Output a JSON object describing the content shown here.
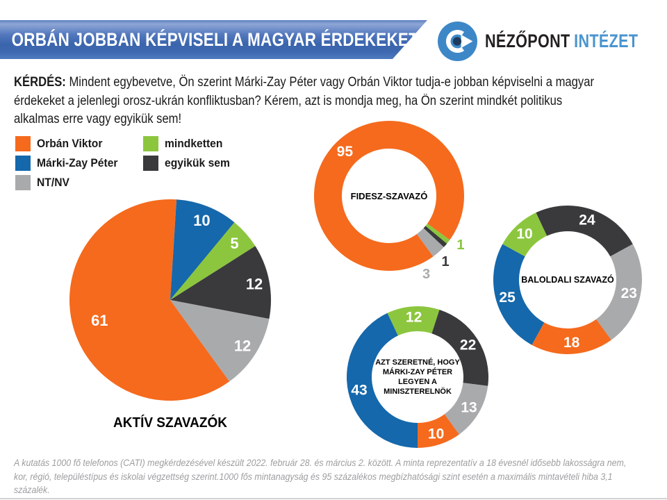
{
  "header": {
    "title": "ORBÁN JOBBAN KÉPVISELI A MAGYAR ÉRDEKEKET"
  },
  "logo": {
    "part1": "NÉZŐPONT",
    "part2": "INTÉZET",
    "icon": "eye-logo",
    "icon_color": "#3d87c7"
  },
  "question": {
    "label": "KÉRDÉS:",
    "line1_rest": " Mindent egybevetve, Ön szerint Márki-Zay Péter vagy Orbán Viktor tudja-e jobban képviselni a magyar",
    "line2": "érdekeket a jelenlegi orosz-ukrán konfliktusban? Kérem, azt is mondja meg, ha Ön szerint mindkét politikus",
    "line3": "alkalmas erre vagy egyikük sem!"
  },
  "legend": {
    "items": [
      {
        "label": "Orbán Viktor",
        "color": "#f56a1d"
      },
      {
        "label": "Márki-Zay Péter",
        "color": "#1568ab"
      },
      {
        "label": "NT/NV",
        "color": "#a9aaac"
      },
      {
        "label": "mindketten",
        "color": "#8cc63e"
      },
      {
        "label": "egyikük sem",
        "color": "#3a3a3c"
      }
    ]
  },
  "chart_data": [
    {
      "type": "pie",
      "title": "AKTÍV SZAVAZÓK",
      "categories": [
        "Orbán Viktor",
        "Márki-Zay Péter",
        "mindketten",
        "egyikük sem",
        "NT/NV"
      ],
      "values": [
        61,
        10,
        5,
        12,
        12
      ],
      "colors": [
        "#f56a1d",
        "#1568ab",
        "#8cc63e",
        "#3a3a3c",
        "#a9aaac"
      ],
      "start_angle": 144,
      "labels": "inside-white",
      "legend_position": "top-left"
    },
    {
      "type": "donut",
      "center_label": [
        "FIDESZ-SZAVAZÓ"
      ],
      "categories": [
        "Orbán Viktor",
        "Márki-Zay Péter",
        "mindketten",
        "egyikük sem",
        "NT/NV"
      ],
      "values": [
        95,
        0,
        1,
        1,
        3
      ],
      "colors": [
        "#f56a1d",
        "#1568ab",
        "#8cc63e",
        "#3a3a3c",
        "#a9aaac"
      ],
      "start_angle": 144,
      "labels": "inside-white, small slices outside colored"
    },
    {
      "type": "donut",
      "center_label": [
        "BALOLDALI SZAVAZÓ"
      ],
      "categories": [
        "Orbán Viktor",
        "Márki-Zay Péter",
        "mindketten",
        "egyikük sem",
        "NT/NV"
      ],
      "values": [
        18,
        25,
        10,
        24,
        23
      ],
      "colors": [
        "#f56a1d",
        "#1568ab",
        "#8cc63e",
        "#3a3a3c",
        "#a9aaac"
      ],
      "start_angle": 144,
      "labels": "inside-white"
    },
    {
      "type": "donut",
      "center_label": [
        "AZT SZERETNÉ, HOGY",
        "MÁRKI-ZAY PÉTER",
        "LEGYEN A",
        "MINISZTERELNÖK"
      ],
      "categories": [
        "Orbán Viktor",
        "Márki-Zay Péter",
        "mindketten",
        "egyikük sem",
        "NT/NV"
      ],
      "values": [
        10,
        43,
        12,
        22,
        13
      ],
      "colors": [
        "#f56a1d",
        "#1568ab",
        "#8cc63e",
        "#3a3a3c",
        "#a9aaac"
      ],
      "start_angle": 144,
      "labels": "inside-white"
    }
  ],
  "footer": {
    "lines": [
      "A kutatás 1000 fő telefonos (CATI) megkérdezésével készült 2022. február 28. és március 2. között. A minta reprezentatív a 18 évesnél idősebb lakosságra nem,",
      "kor, régió, településtípus és iskolai végzettség szerint.1000 fős mintanagyság és 95 százalékos megbízhatósági szint esetén a maximális mintavételi hiba 3,1",
      "százalék."
    ]
  }
}
